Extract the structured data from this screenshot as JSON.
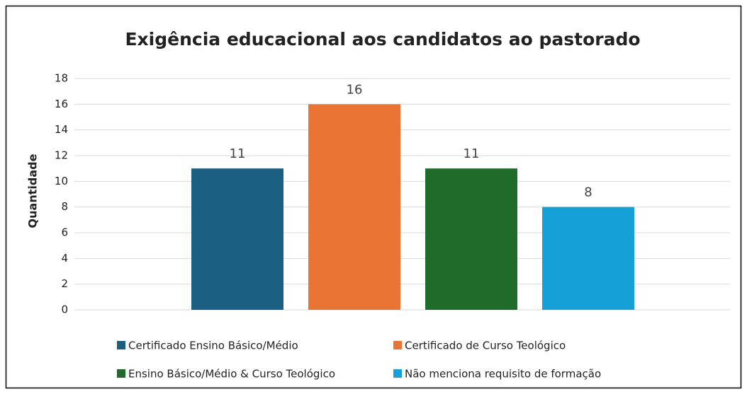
{
  "chart_data": {
    "type": "bar",
    "title": "Exigência educacional aos candidatos ao pastorado",
    "y_label": "Quantidade",
    "categories": [
      null
    ],
    "series": [
      {
        "name": "Certificado Ensino Básico/Médio",
        "color": "#1a5e82",
        "values": [
          11
        ]
      },
      {
        "name": "Certificado de Curso Teológico",
        "color": "#ea7434",
        "values": [
          16
        ]
      },
      {
        "name": "Ensino Básico/Médio & Curso Teológico",
        "color": "#1e6b2a",
        "values": [
          11
        ]
      },
      {
        "name": "Não menciona requisito de formação",
        "color": "#15a0d8",
        "values": [
          8
        ]
      }
    ],
    "ylim": [
      0,
      18
    ],
    "yticks": [
      0,
      2,
      4,
      6,
      8,
      10,
      12,
      14,
      16,
      18
    ],
    "grid": true,
    "legend": "bottom"
  }
}
